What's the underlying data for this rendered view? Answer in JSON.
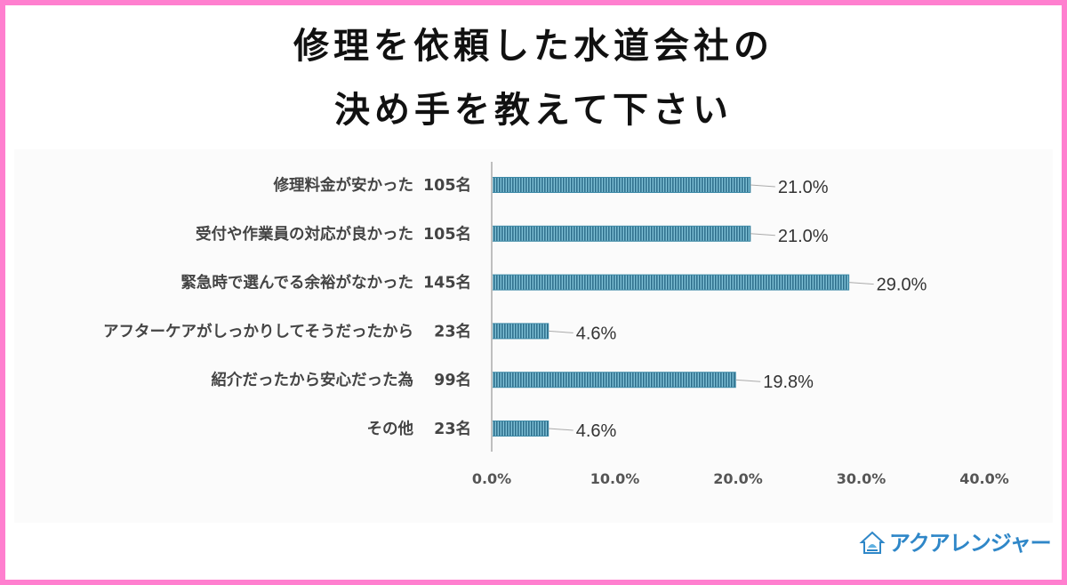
{
  "title": {
    "line1": "修理を依頼した水道会社の",
    "line2": "決め手を教えて下さい"
  },
  "chart_data": {
    "type": "bar",
    "orientation": "horizontal",
    "categories": [
      "修理料金が安かった",
      "受付や作業員の対応が良かった",
      "緊急時で選んでる余裕がなかった",
      "アフターケアがしっかりしてそうだったから",
      "紹介だったから安心だった為",
      "その他"
    ],
    "counts": [
      "105名",
      "105名",
      "145名",
      "23名",
      "99名",
      "23名"
    ],
    "values": [
      21.0,
      21.0,
      29.0,
      4.6,
      19.8,
      4.6
    ],
    "value_labels": [
      "21.0%",
      "21.0%",
      "29.0%",
      "4.6%",
      "19.8%",
      "4.6%"
    ],
    "xlim": [
      0,
      40
    ],
    "x_ticks": [
      0,
      10,
      20,
      30,
      40
    ],
    "x_tick_labels": [
      "0.0%",
      "10.0%",
      "20.0%",
      "30.0%",
      "40.0%"
    ],
    "grid": false,
    "legend": "none",
    "bar_color": "#3c89a6"
  },
  "brand": {
    "logo_text": "アクアレンジャー",
    "color": "#2f87c8"
  },
  "frame_color": "#ff7fcf"
}
